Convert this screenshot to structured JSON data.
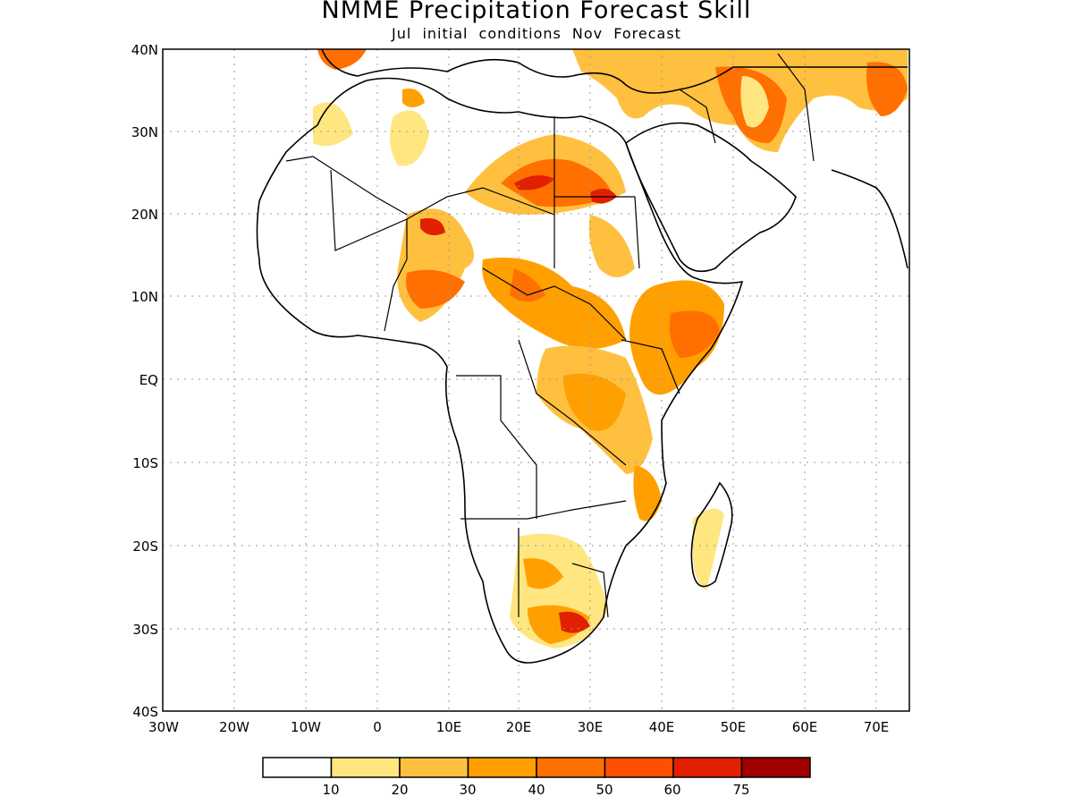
{
  "title": "NMME Precipitation Forecast Skill",
  "subtitle": "Jul initial conditions  Nov Forecast",
  "map": {
    "lon_range": [
      -30,
      75
    ],
    "lat_range": [
      -40,
      40
    ],
    "lat_labels": [
      "40N",
      "30N",
      "20N",
      "10N",
      "EQ",
      "10S",
      "20S",
      "30S",
      "40S"
    ],
    "lon_labels": [
      "30W",
      "20W",
      "10W",
      "0",
      "10E",
      "20E",
      "30E",
      "40E",
      "50E",
      "60E",
      "70E"
    ],
    "gridlines": true
  },
  "colorbar": {
    "labels": [
      "10",
      "20",
      "30",
      "40",
      "50",
      "60",
      "75"
    ],
    "colors": [
      "#ffffff",
      "#ffe680",
      "#ffc040",
      "#ffa000",
      "#ff7000",
      "#ff5000",
      "#e02000",
      "#a00000"
    ]
  }
}
